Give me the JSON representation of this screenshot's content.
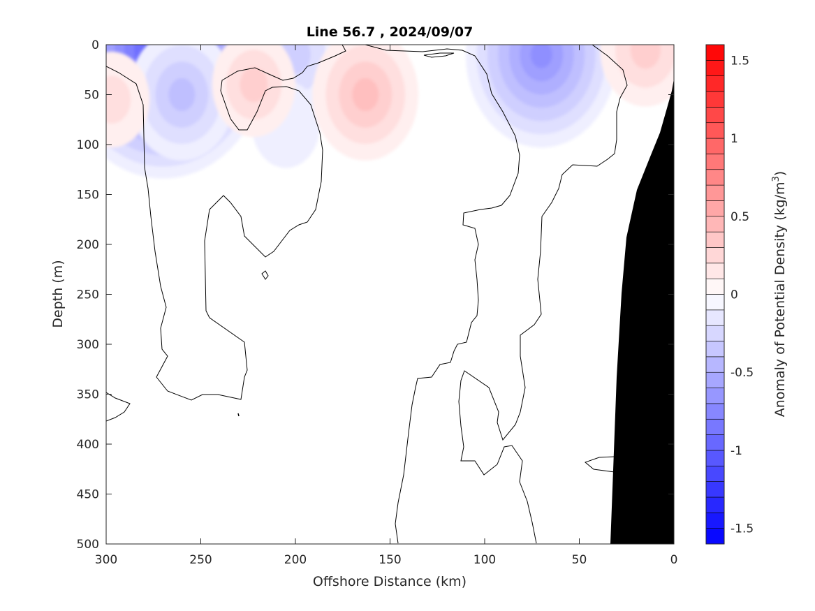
{
  "chart_data": {
    "type": "heatmap",
    "title": "Line 56.7 , 2024/09/07",
    "xlabel": "Offshore Distance (km)",
    "ylabel": "Depth (m)",
    "xlim": [
      300,
      0
    ],
    "x_reversed": true,
    "ylim": [
      0,
      500
    ],
    "y_reversed": true,
    "xticks": [
      300,
      250,
      200,
      150,
      100,
      50,
      0
    ],
    "yticks": [
      0,
      50,
      100,
      150,
      200,
      250,
      300,
      350,
      400,
      450,
      500
    ],
    "colorbar": {
      "label": "Anomaly of Potential Density (kg/m",
      "label_superscript": "3",
      "label_close": ")",
      "range": [
        -1.6,
        1.6
      ],
      "step": 0.1,
      "ticks": [
        1.5,
        1,
        0.5,
        0,
        -0.5,
        -1,
        -1.5
      ],
      "colormap": "blue-white-red",
      "low_color": "#0000ff",
      "high_color": "#ff0000",
      "mid_color": "#ffffff"
    },
    "features": [
      {
        "type": "negative_anomaly",
        "x": 270,
        "depth": 5,
        "peak": -1.1
      },
      {
        "type": "negative_anomaly",
        "x": 260,
        "depth": 50,
        "peak": -0.4
      },
      {
        "type": "negative_anomaly",
        "x": 200,
        "depth": 10,
        "peak": -0.3
      },
      {
        "type": "negative_anomaly",
        "x": 70,
        "depth": 10,
        "peak": -0.7
      },
      {
        "type": "negative_anomaly",
        "x": 205,
        "depth": 80,
        "peak": -0.15
      },
      {
        "type": "positive_anomaly",
        "x": 163,
        "depth": 50,
        "peak": 0.4
      },
      {
        "type": "positive_anomaly",
        "x": 222,
        "depth": 40,
        "peak": 0.25
      },
      {
        "type": "positive_anomaly",
        "x": 297,
        "depth": 55,
        "peak": 0.2
      },
      {
        "type": "positive_anomaly",
        "x": 15,
        "depth": 5,
        "peak": 0.3
      }
    ],
    "bathymetry_mask": {
      "color": "#000000",
      "depth_at_0km": 35,
      "depth_at_33km": 500
    }
  }
}
